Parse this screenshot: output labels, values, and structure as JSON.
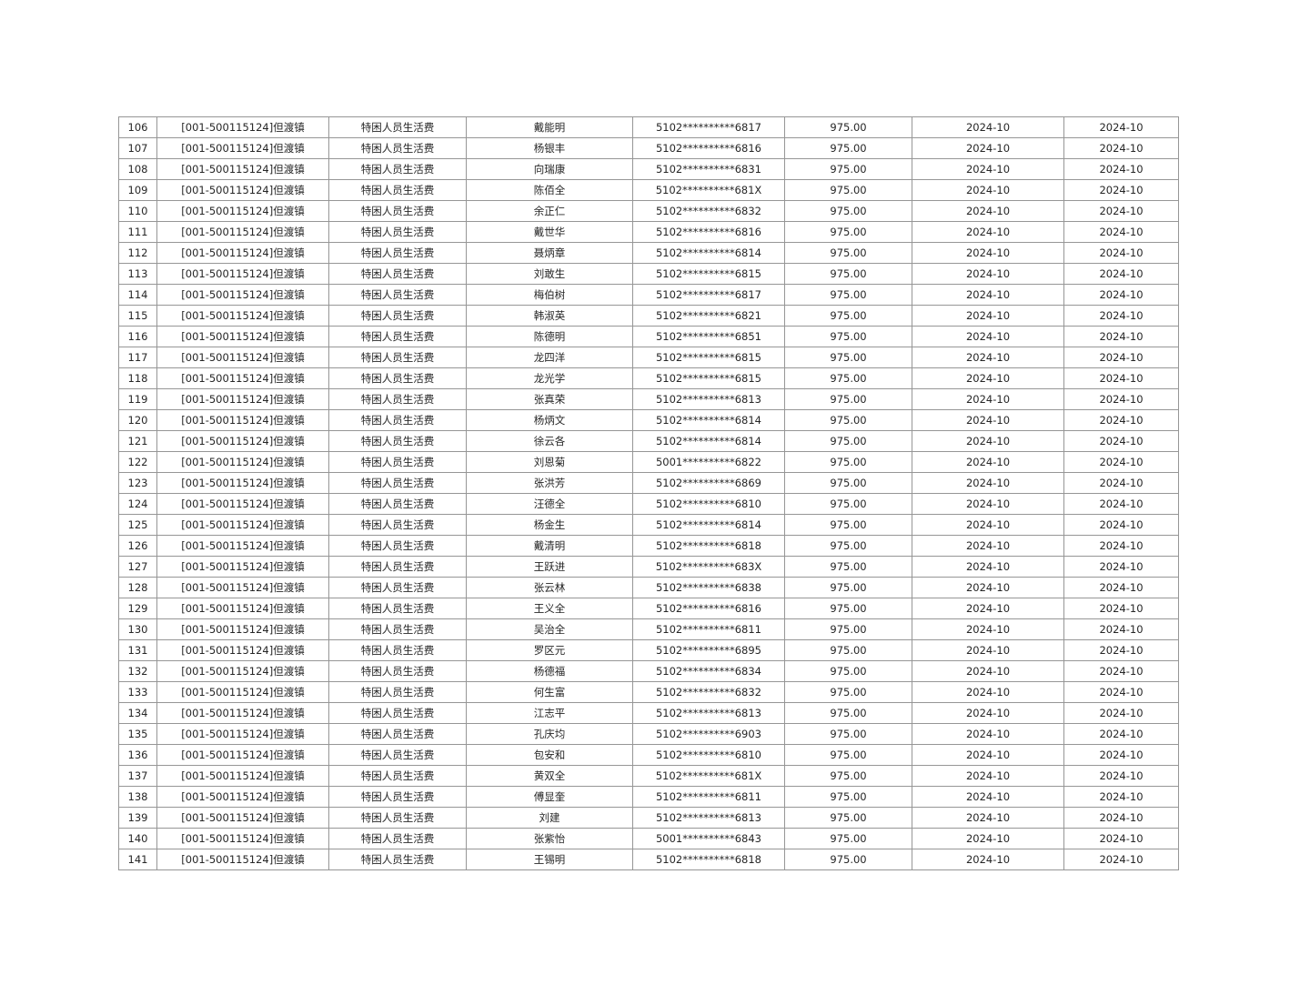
{
  "colors": {
    "background": "#ffffff",
    "table_border": "#969696",
    "text": "#262626"
  },
  "table": {
    "field_names": [
      "row-number",
      "unit",
      "subsidy-item",
      "person-name",
      "id-number",
      "amount",
      "month-1",
      "month-2"
    ],
    "rows": [
      [
        "106",
        "[001-500115124]但渡镇",
        "特困人员生活费",
        "戴能明",
        "5102**********6817",
        "975.00",
        "2024-10",
        "2024-10"
      ],
      [
        "107",
        "[001-500115124]但渡镇",
        "特困人员生活费",
        "杨银丰",
        "5102**********6816",
        "975.00",
        "2024-10",
        "2024-10"
      ],
      [
        "108",
        "[001-500115124]但渡镇",
        "特困人员生活费",
        "向瑞康",
        "5102**********6831",
        "975.00",
        "2024-10",
        "2024-10"
      ],
      [
        "109",
        "[001-500115124]但渡镇",
        "特困人员生活费",
        "陈佰全",
        "5102**********681X",
        "975.00",
        "2024-10",
        "2024-10"
      ],
      [
        "110",
        "[001-500115124]但渡镇",
        "特困人员生活费",
        "余正仁",
        "5102**********6832",
        "975.00",
        "2024-10",
        "2024-10"
      ],
      [
        "111",
        "[001-500115124]但渡镇",
        "特困人员生活费",
        "戴世华",
        "5102**********6816",
        "975.00",
        "2024-10",
        "2024-10"
      ],
      [
        "112",
        "[001-500115124]但渡镇",
        "特困人员生活费",
        "聂炳章",
        "5102**********6814",
        "975.00",
        "2024-10",
        "2024-10"
      ],
      [
        "113",
        "[001-500115124]但渡镇",
        "特困人员生活费",
        "刘敢生",
        "5102**********6815",
        "975.00",
        "2024-10",
        "2024-10"
      ],
      [
        "114",
        "[001-500115124]但渡镇",
        "特困人员生活费",
        "梅伯树",
        "5102**********6817",
        "975.00",
        "2024-10",
        "2024-10"
      ],
      [
        "115",
        "[001-500115124]但渡镇",
        "特困人员生活费",
        "韩淑英",
        "5102**********6821",
        "975.00",
        "2024-10",
        "2024-10"
      ],
      [
        "116",
        "[001-500115124]但渡镇",
        "特困人员生活费",
        "陈德明",
        "5102**********6851",
        "975.00",
        "2024-10",
        "2024-10"
      ],
      [
        "117",
        "[001-500115124]但渡镇",
        "特困人员生活费",
        "龙四洋",
        "5102**********6815",
        "975.00",
        "2024-10",
        "2024-10"
      ],
      [
        "118",
        "[001-500115124]但渡镇",
        "特困人员生活费",
        "龙光学",
        "5102**********6815",
        "975.00",
        "2024-10",
        "2024-10"
      ],
      [
        "119",
        "[001-500115124]但渡镇",
        "特困人员生活费",
        "张真荣",
        "5102**********6813",
        "975.00",
        "2024-10",
        "2024-10"
      ],
      [
        "120",
        "[001-500115124]但渡镇",
        "特困人员生活费",
        "杨炳文",
        "5102**********6814",
        "975.00",
        "2024-10",
        "2024-10"
      ],
      [
        "121",
        "[001-500115124]但渡镇",
        "特困人员生活费",
        "徐云各",
        "5102**********6814",
        "975.00",
        "2024-10",
        "2024-10"
      ],
      [
        "122",
        "[001-500115124]但渡镇",
        "特困人员生活费",
        "刘恩菊",
        "5001**********6822",
        "975.00",
        "2024-10",
        "2024-10"
      ],
      [
        "123",
        "[001-500115124]但渡镇",
        "特困人员生活费",
        "张洪芳",
        "5102**********6869",
        "975.00",
        "2024-10",
        "2024-10"
      ],
      [
        "124",
        "[001-500115124]但渡镇",
        "特困人员生活费",
        "汪德全",
        "5102**********6810",
        "975.00",
        "2024-10",
        "2024-10"
      ],
      [
        "125",
        "[001-500115124]但渡镇",
        "特困人员生活费",
        "杨金生",
        "5102**********6814",
        "975.00",
        "2024-10",
        "2024-10"
      ],
      [
        "126",
        "[001-500115124]但渡镇",
        "特困人员生活费",
        "戴清明",
        "5102**********6818",
        "975.00",
        "2024-10",
        "2024-10"
      ],
      [
        "127",
        "[001-500115124]但渡镇",
        "特困人员生活费",
        "王跃进",
        "5102**********683X",
        "975.00",
        "2024-10",
        "2024-10"
      ],
      [
        "128",
        "[001-500115124]但渡镇",
        "特困人员生活费",
        "张云林",
        "5102**********6838",
        "975.00",
        "2024-10",
        "2024-10"
      ],
      [
        "129",
        "[001-500115124]但渡镇",
        "特困人员生活费",
        "王义全",
        "5102**********6816",
        "975.00",
        "2024-10",
        "2024-10"
      ],
      [
        "130",
        "[001-500115124]但渡镇",
        "特困人员生活费",
        "吴治全",
        "5102**********6811",
        "975.00",
        "2024-10",
        "2024-10"
      ],
      [
        "131",
        "[001-500115124]但渡镇",
        "特困人员生活费",
        "罗区元",
        "5102**********6895",
        "975.00",
        "2024-10",
        "2024-10"
      ],
      [
        "132",
        "[001-500115124]但渡镇",
        "特困人员生活费",
        "杨德福",
        "5102**********6834",
        "975.00",
        "2024-10",
        "2024-10"
      ],
      [
        "133",
        "[001-500115124]但渡镇",
        "特困人员生活费",
        "何生富",
        "5102**********6832",
        "975.00",
        "2024-10",
        "2024-10"
      ],
      [
        "134",
        "[001-500115124]但渡镇",
        "特困人员生活费",
        "江志平",
        "5102**********6813",
        "975.00",
        "2024-10",
        "2024-10"
      ],
      [
        "135",
        "[001-500115124]但渡镇",
        "特困人员生活费",
        "孔庆均",
        "5102**********6903",
        "975.00",
        "2024-10",
        "2024-10"
      ],
      [
        "136",
        "[001-500115124]但渡镇",
        "特困人员生活费",
        "包安和",
        "5102**********6810",
        "975.00",
        "2024-10",
        "2024-10"
      ],
      [
        "137",
        "[001-500115124]但渡镇",
        "特困人员生活费",
        "黄双全",
        "5102**********681X",
        "975.00",
        "2024-10",
        "2024-10"
      ],
      [
        "138",
        "[001-500115124]但渡镇",
        "特困人员生活费",
        "傅显奎",
        "5102**********6811",
        "975.00",
        "2024-10",
        "2024-10"
      ],
      [
        "139",
        "[001-500115124]但渡镇",
        "特困人员生活费",
        "刘建",
        "5102**********6813",
        "975.00",
        "2024-10",
        "2024-10"
      ],
      [
        "140",
        "[001-500115124]但渡镇",
        "特困人员生活费",
        "张紫怡",
        "5001**********6843",
        "975.00",
        "2024-10",
        "2024-10"
      ],
      [
        "141",
        "[001-500115124]但渡镇",
        "特困人员生活费",
        "王锡明",
        "5102**********6818",
        "975.00",
        "2024-10",
        "2024-10"
      ]
    ]
  }
}
